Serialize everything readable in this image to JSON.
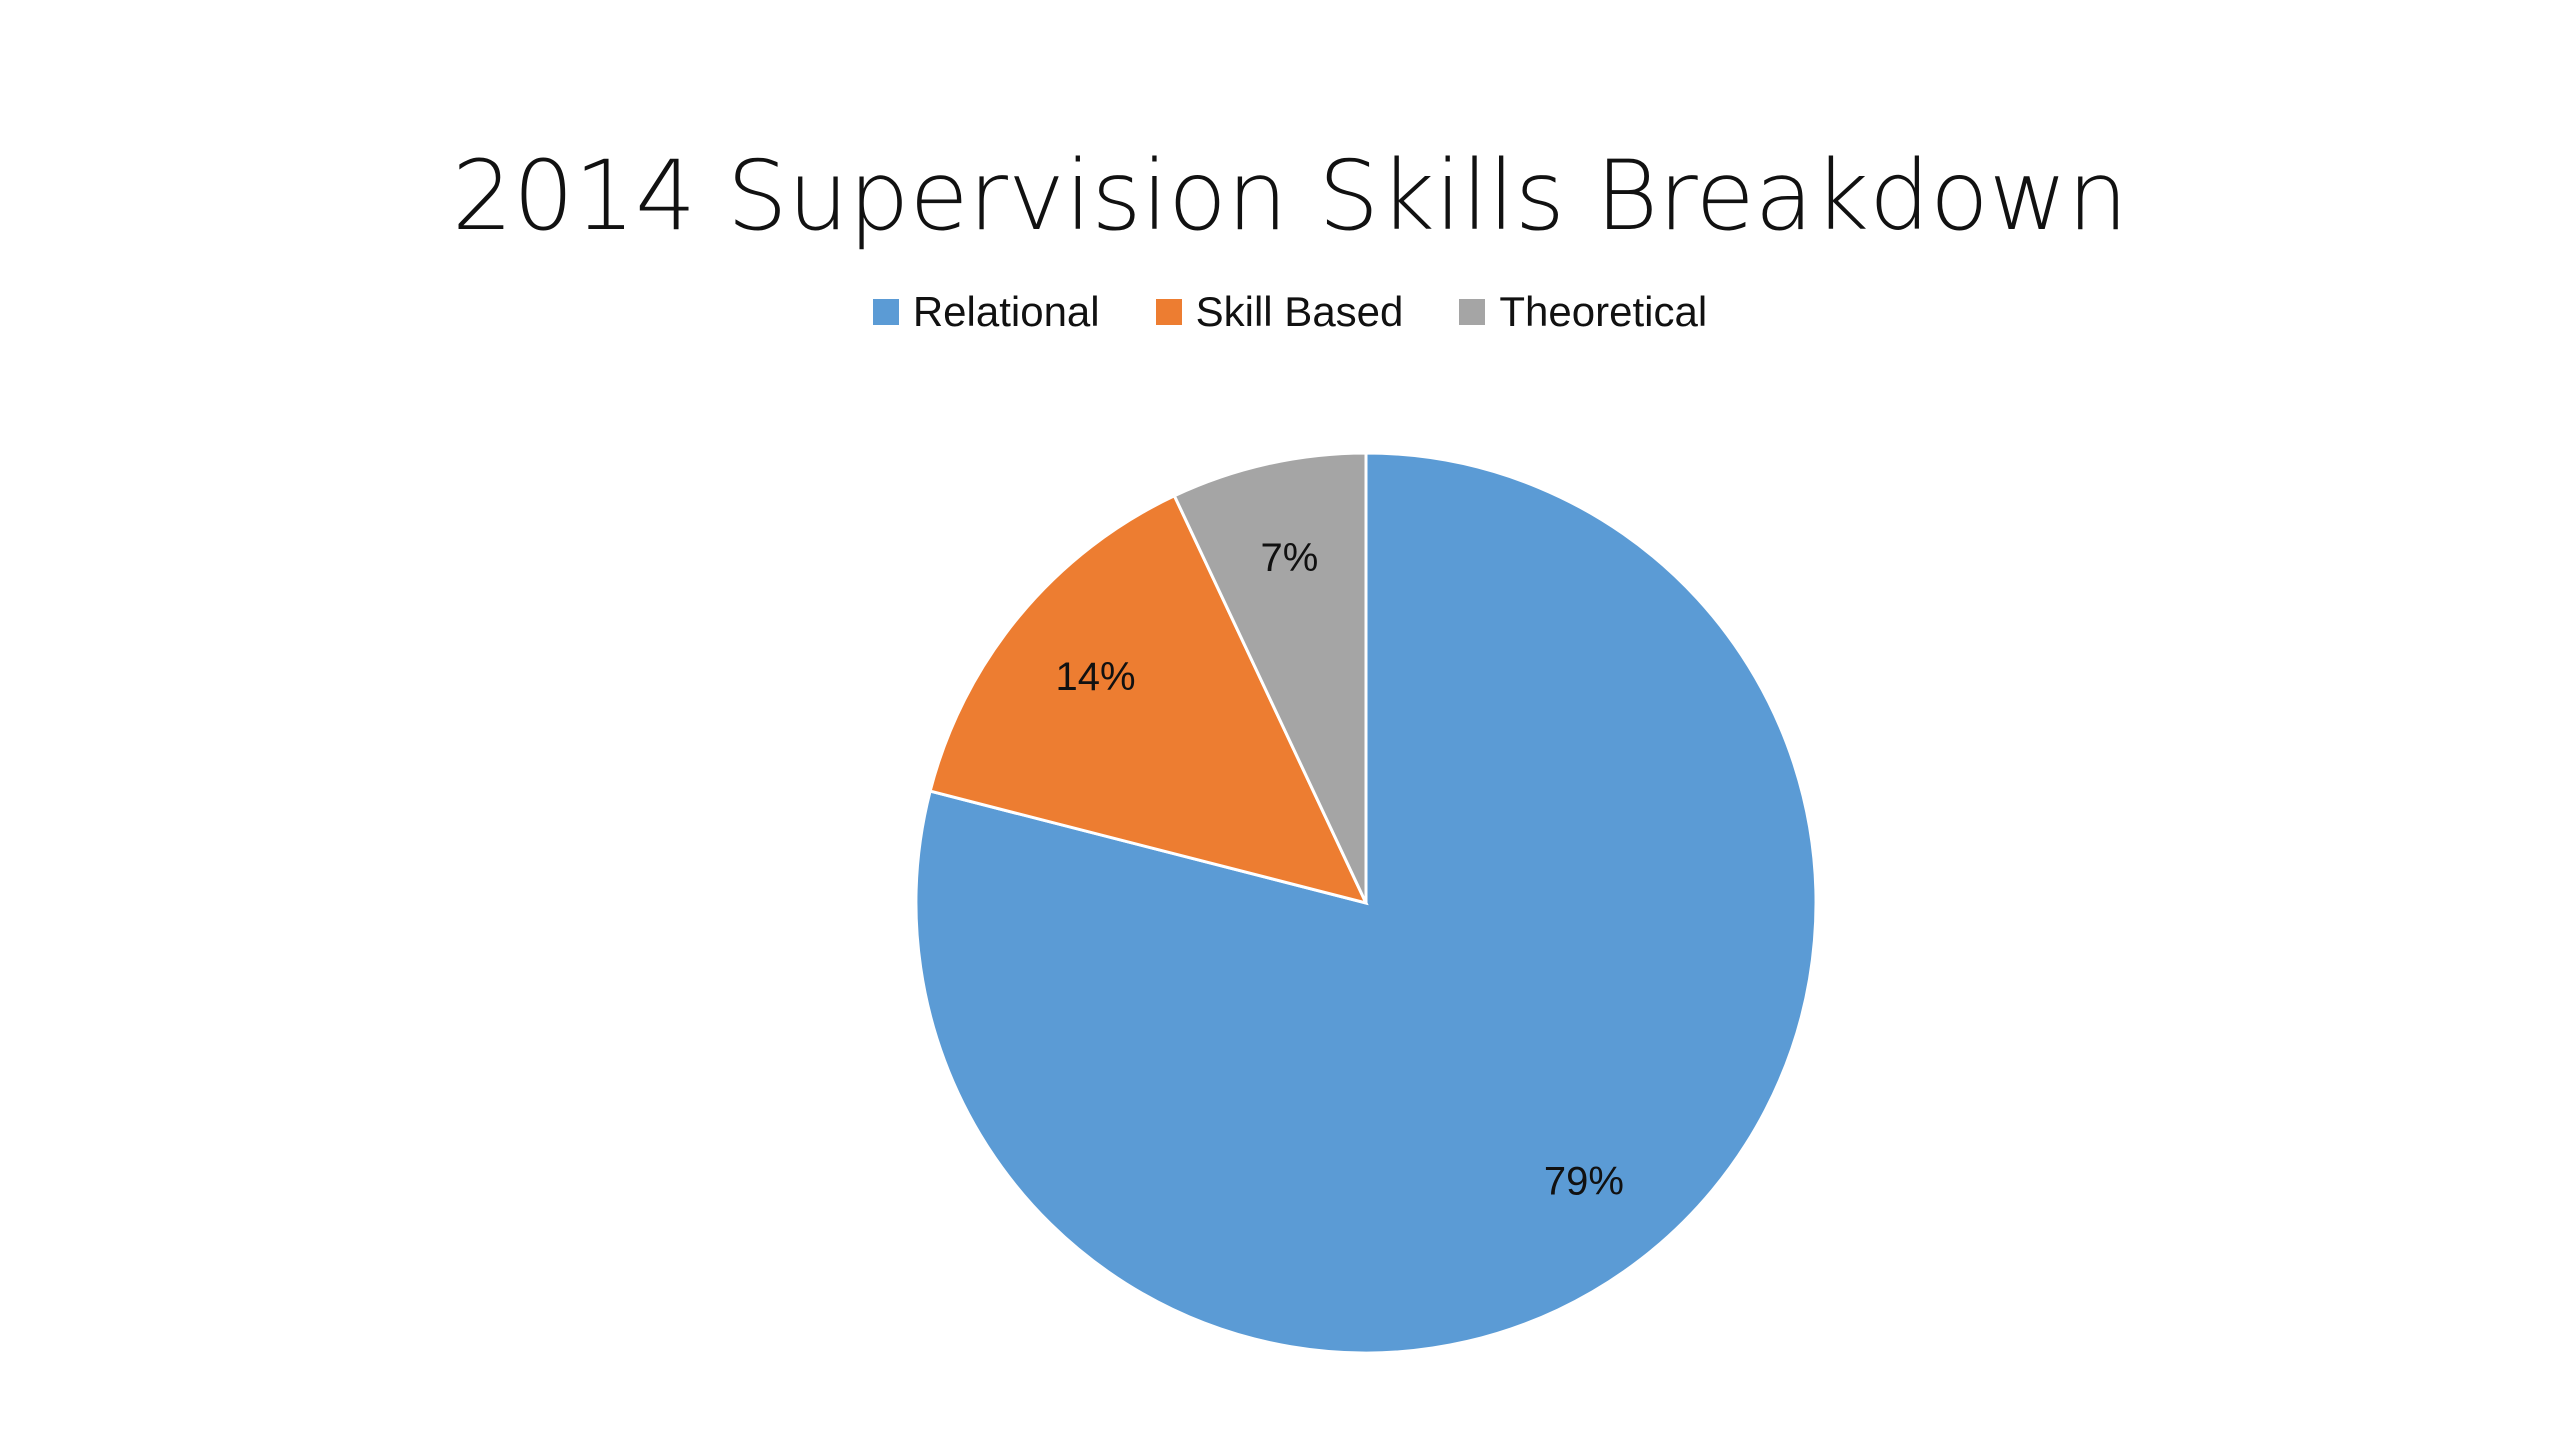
{
  "chart_data": {
    "type": "pie",
    "title": "2014 Supervision Skills Breakdown",
    "legend_position": "top",
    "slices": [
      {
        "name": "Relational",
        "value": 79,
        "label": "79%",
        "color": "#5B9BD5"
      },
      {
        "name": "Skill Based",
        "value": 14,
        "label": "14%",
        "color": "#ED7D31"
      },
      {
        "name": "Theoretical",
        "value": 7,
        "label": "7%",
        "color": "#A5A5A5"
      }
    ]
  }
}
